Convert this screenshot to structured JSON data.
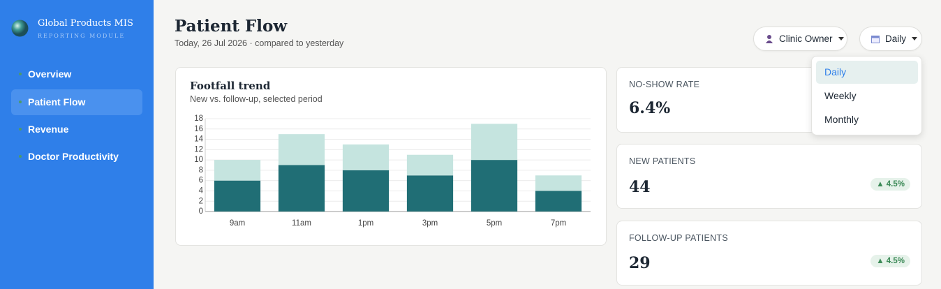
{
  "sidebar": {
    "brand": "Global Products MIS",
    "tagline": "REPORTING MODULE",
    "nav": [
      "Overview",
      "Patient Flow",
      "Revenue",
      "Doctor Productivity"
    ]
  },
  "header": {
    "title": "Patient Flow",
    "subtitle": "Today, 26 Jul 2026 · compared to yesterday",
    "role_button": "Clinic Owner",
    "period_button": "Daily",
    "period_options": [
      "Daily",
      "Weekly",
      "Monthly"
    ]
  },
  "chart_data": {
    "type": "bar",
    "stacked": true,
    "title": "Footfall trend",
    "subtitle": "New vs. follow-up, selected period",
    "categories": [
      "9am",
      "11am",
      "1pm",
      "3pm",
      "5pm",
      "7pm"
    ],
    "series": [
      {
        "color": "#206e75",
        "values": [
          6,
          9,
          8,
          7,
          10,
          4
        ]
      },
      {
        "color": "#c5e4df",
        "values": [
          4,
          6,
          5,
          4,
          7,
          3
        ]
      }
    ],
    "ylim": [
      0,
      18
    ],
    "yticks": [
      0,
      2,
      4,
      6,
      8,
      10,
      12,
      14,
      16,
      18
    ],
    "grid": true
  },
  "kpis": [
    {
      "label": "NO-SHOW RATE",
      "value": "6.4%"
    },
    {
      "label": "NEW PATIENTS",
      "value": "44",
      "delta": "▲ 4.5%"
    },
    {
      "label": "FOLLOW-UP PATIENTS",
      "value": "29",
      "delta": "▲ 4.5%"
    }
  ]
}
